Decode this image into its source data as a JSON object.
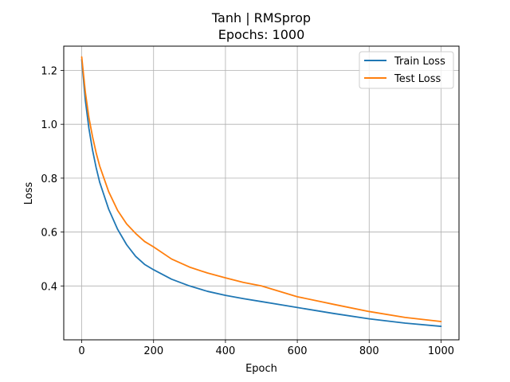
{
  "chart_data": {
    "type": "line",
    "title": "Tanh | RMSprop",
    "subtitle": "Epochs: 1000",
    "xlabel": "Epoch",
    "ylabel": "Loss",
    "xlim": [
      -50,
      1050
    ],
    "ylim": [
      0.2,
      1.29
    ],
    "xticks": [
      0,
      200,
      400,
      600,
      800,
      1000
    ],
    "yticks": [
      0.4,
      0.6,
      0.8,
      1.0,
      1.2
    ],
    "ytick_labels": [
      "0.4",
      "0.6",
      "0.8",
      "1.0",
      "1.2"
    ],
    "grid": true,
    "legend_position": "top-right",
    "series": [
      {
        "name": "Train Loss",
        "color": "#1f77b4",
        "x": [
          0,
          10,
          20,
          30,
          40,
          50,
          75,
          100,
          125,
          150,
          175,
          200,
          250,
          300,
          350,
          400,
          450,
          500,
          600,
          700,
          800,
          900,
          1000
        ],
        "y": [
          1.24,
          1.09,
          0.985,
          0.905,
          0.84,
          0.785,
          0.685,
          0.61,
          0.553,
          0.51,
          0.48,
          0.46,
          0.425,
          0.4,
          0.38,
          0.365,
          0.353,
          0.342,
          0.32,
          0.298,
          0.278,
          0.262,
          0.25
        ]
      },
      {
        "name": "Test Loss",
        "color": "#ff7f0e",
        "x": [
          0,
          10,
          20,
          30,
          40,
          50,
          75,
          100,
          125,
          150,
          175,
          200,
          250,
          300,
          350,
          400,
          450,
          500,
          600,
          700,
          800,
          900,
          1000
        ],
        "y": [
          1.25,
          1.12,
          1.025,
          0.955,
          0.895,
          0.845,
          0.75,
          0.68,
          0.63,
          0.595,
          0.565,
          0.545,
          0.5,
          0.47,
          0.448,
          0.43,
          0.413,
          0.4,
          0.36,
          0.332,
          0.305,
          0.283,
          0.268
        ]
      }
    ]
  }
}
